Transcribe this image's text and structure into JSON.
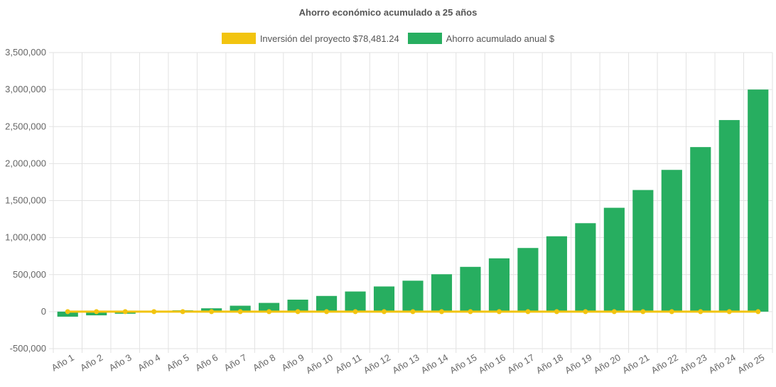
{
  "chart_data": {
    "type": "bar",
    "title": "Ahorro económico acumulado a 25 años",
    "legend_position": "top-center",
    "grid": true,
    "categories": [
      "Año 1",
      "Año 2",
      "Año 3",
      "Año 4",
      "Año 5",
      "Año 6",
      "Año 7",
      "Año 8",
      "Año 9",
      "Año 10",
      "Año 11",
      "Año 12",
      "Año 13",
      "Año 14",
      "Año 15",
      "Año 16",
      "Año 17",
      "Año 18",
      "Año 19",
      "Año 20",
      "Año 21",
      "Año 22",
      "Año 23",
      "Año 24",
      "Año 25"
    ],
    "yticks": [
      "3,500,000",
      "3,000,000",
      "2,500,000",
      "2,000,000",
      "1,500,000",
      "1,000,000",
      "500,000",
      "0",
      "-500,000"
    ],
    "ylim": [
      -500000,
      3500000
    ],
    "series": [
      {
        "name": "Inversión del proyecto $78,481.24",
        "type": "line",
        "color": "#f2c40f",
        "values": [
          0,
          0,
          0,
          0,
          0,
          0,
          0,
          0,
          0,
          0,
          0,
          0,
          0,
          0,
          0,
          0,
          0,
          0,
          0,
          0,
          0,
          0,
          0,
          0,
          0
        ]
      },
      {
        "name": "Ahorro acumulado anual $",
        "type": "bar",
        "color": "#27ae60",
        "values": [
          -68000,
          -50000,
          -28000,
          -5000,
          18000,
          45000,
          80000,
          118000,
          162000,
          212000,
          272000,
          340000,
          418000,
          505000,
          605000,
          720000,
          860000,
          1018000,
          1195000,
          1403000,
          1643000,
          1915000,
          2223000,
          2588000,
          3000000
        ]
      }
    ]
  }
}
